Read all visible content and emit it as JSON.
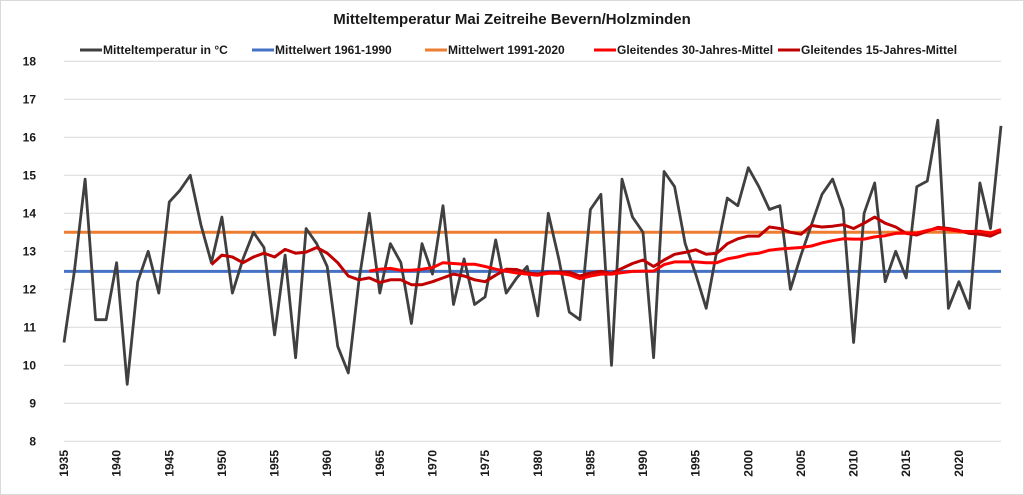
{
  "chart_data": {
    "type": "line",
    "title": "Mitteltemperatur Mai Zeitreihe Bevern/Holzminden",
    "xlabel": "",
    "ylabel": "",
    "ylim": [
      8,
      18
    ],
    "xlim": [
      1935,
      2024
    ],
    "yticks": [
      8,
      9,
      10,
      11,
      12,
      13,
      14,
      15,
      16,
      17,
      18
    ],
    "xticks": [
      1935,
      1940,
      1945,
      1950,
      1955,
      1960,
      1965,
      1970,
      1975,
      1980,
      1985,
      1990,
      1995,
      2000,
      2005,
      2010,
      2015,
      2020
    ],
    "grid": true,
    "legend_position": "top",
    "series": [
      {
        "name": "Mitteltemperatur in °C",
        "color": "#404040",
        "start_year": 1935,
        "values": [
          10.6,
          12.5,
          14.9,
          11.2,
          11.2,
          12.7,
          9.5,
          12.2,
          13.0,
          11.9,
          14.3,
          14.6,
          15.0,
          13.7,
          12.7,
          13.9,
          11.9,
          12.8,
          13.5,
          13.1,
          10.8,
          12.9,
          10.2,
          13.6,
          13.2,
          12.6,
          10.5,
          9.8,
          12.2,
          14.0,
          11.9,
          13.2,
          12.7,
          11.1,
          13.2,
          12.4,
          14.2,
          11.6,
          12.8,
          11.6,
          11.8,
          13.3,
          11.9,
          12.3,
          12.6,
          11.3,
          14.0,
          12.8,
          11.4,
          11.2,
          14.1,
          14.5,
          10.0,
          14.9,
          13.9,
          13.5,
          10.2,
          15.1,
          14.7,
          13.2,
          12.4,
          11.5,
          13.0,
          14.4,
          14.2,
          15.2,
          14.7,
          14.1,
          14.2,
          12.0,
          12.9,
          13.7,
          14.5,
          14.9,
          14.1,
          10.6,
          14.0,
          14.8,
          12.2,
          13.0,
          12.3,
          14.7,
          14.85,
          16.45,
          11.5,
          12.2,
          11.5,
          14.8,
          13.6,
          16.3
        ]
      },
      {
        "name": "Mittelwert 1961-1990",
        "color": "#4472c4",
        "constant": 12.47
      },
      {
        "name": "Mittelwert 1991-2020",
        "color": "#ed7d31",
        "constant": 13.5
      },
      {
        "name": "Gleitendes 30-Jahres-Mittel",
        "color": "#ff0000",
        "start_year": 1964,
        "values": [
          12.48,
          12.53,
          12.55,
          12.5,
          12.5,
          12.53,
          12.57,
          12.7,
          12.68,
          12.66,
          12.66,
          12.6,
          12.53,
          12.48,
          12.43,
          12.4,
          12.37,
          12.42,
          12.42,
          12.38,
          12.28,
          12.35,
          12.4,
          12.4,
          12.44,
          12.47,
          12.48,
          12.48,
          12.65,
          12.72,
          12.72,
          12.72,
          12.7,
          12.7,
          12.8,
          12.85,
          12.92,
          12.95,
          13.03,
          13.06,
          13.08,
          13.1,
          13.14,
          13.22,
          13.28,
          13.33,
          13.32,
          13.32,
          13.38,
          13.41,
          13.47,
          13.48,
          13.48,
          13.55,
          13.6,
          13.57,
          13.53,
          13.52,
          13.53,
          13.48,
          13.57
        ]
      },
      {
        "name": "Gleitendes 15-Jahres-Mittel",
        "color": "#c00000",
        "start_year": 1949,
        "values": [
          12.65,
          12.9,
          12.85,
          12.7,
          12.85,
          12.95,
          12.85,
          13.05,
          12.95,
          12.98,
          13.1,
          12.95,
          12.7,
          12.35,
          12.25,
          12.3,
          12.18,
          12.25,
          12.25,
          12.12,
          12.12,
          12.2,
          12.3,
          12.4,
          12.35,
          12.25,
          12.2,
          12.37,
          12.53,
          12.52,
          12.43,
          12.4,
          12.45,
          12.45,
          12.45,
          12.35,
          12.43,
          12.47,
          12.42,
          12.55,
          12.68,
          12.77,
          12.6,
          12.77,
          12.92,
          12.97,
          13.04,
          12.92,
          12.95,
          13.2,
          13.33,
          13.4,
          13.4,
          13.64,
          13.6,
          13.5,
          13.45,
          13.68,
          13.64,
          13.66,
          13.7,
          13.6,
          13.74,
          13.9,
          13.74,
          13.64,
          13.47,
          13.43,
          13.53,
          13.63,
          13.6,
          13.55,
          13.47,
          13.45,
          13.4,
          13.53
        ]
      }
    ]
  }
}
